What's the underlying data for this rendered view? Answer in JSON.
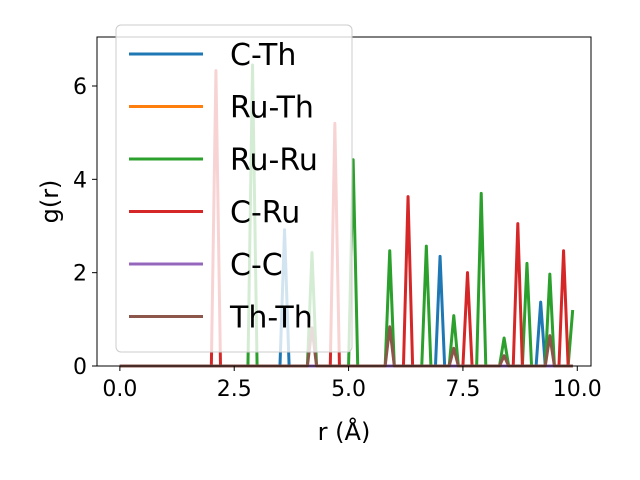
{
  "chart_data": {
    "type": "line",
    "title": "",
    "xlabel": "r (Å)",
    "ylabel": "g(r)",
    "xlim": [
      -0.5,
      10.3
    ],
    "ylim": [
      0,
      7.05
    ],
    "xticks": [
      0.0,
      2.5,
      5.0,
      7.5,
      10.0
    ],
    "xtick_labels": [
      "0.0",
      "2.5",
      "5.0",
      "7.5",
      "10.0"
    ],
    "yticks": [
      0,
      2,
      4,
      6
    ],
    "ytick_labels": [
      "0",
      "2",
      "4",
      "6"
    ],
    "grid": false,
    "legend_position": "upper-left",
    "series": [
      {
        "name": "C-Th",
        "color": "#1f77b4",
        "points": [
          [
            0,
            0
          ],
          [
            3.5,
            0
          ],
          [
            3.6,
            2.92
          ],
          [
            3.7,
            0
          ],
          [
            6.9,
            0
          ],
          [
            7.0,
            2.35
          ],
          [
            7.1,
            0
          ],
          [
            9.1,
            0
          ],
          [
            9.2,
            1.37
          ],
          [
            9.3,
            0
          ],
          [
            9.9,
            0
          ]
        ]
      },
      {
        "name": "Ru-Th",
        "color": "#ff7f0e",
        "points": [
          [
            0,
            0
          ],
          [
            9.9,
            0
          ]
        ]
      },
      {
        "name": "Ru-Ru",
        "color": "#2ca02c",
        "points": [
          [
            0,
            0
          ],
          [
            2.8,
            0
          ],
          [
            2.9,
            6.45
          ],
          [
            3.0,
            0
          ],
          [
            4.1,
            0
          ],
          [
            4.2,
            2.43
          ],
          [
            4.3,
            0
          ],
          [
            5.0,
            0
          ],
          [
            5.1,
            4.42
          ],
          [
            5.2,
            0
          ],
          [
            5.8,
            0
          ],
          [
            5.9,
            2.47
          ],
          [
            6.0,
            0
          ],
          [
            6.6,
            0
          ],
          [
            6.7,
            2.57
          ],
          [
            6.8,
            0
          ],
          [
            7.2,
            0
          ],
          [
            7.3,
            1.08
          ],
          [
            7.4,
            0
          ],
          [
            7.8,
            0
          ],
          [
            7.9,
            3.7
          ],
          [
            8.0,
            0
          ],
          [
            8.3,
            0
          ],
          [
            8.4,
            0.6
          ],
          [
            8.5,
            0
          ],
          [
            8.8,
            0
          ],
          [
            8.9,
            2.2
          ],
          [
            9.0,
            0
          ],
          [
            9.3,
            0
          ],
          [
            9.4,
            1.97
          ],
          [
            9.5,
            0
          ],
          [
            9.8,
            0
          ],
          [
            9.9,
            1.2
          ]
        ]
      },
      {
        "name": "C-Ru",
        "color": "#d62728",
        "points": [
          [
            0,
            0
          ],
          [
            2.0,
            0
          ],
          [
            2.1,
            6.33
          ],
          [
            2.2,
            0
          ],
          [
            4.6,
            0
          ],
          [
            4.7,
            5.2
          ],
          [
            4.8,
            0
          ],
          [
            6.2,
            0
          ],
          [
            6.3,
            3.63
          ],
          [
            6.4,
            0
          ],
          [
            7.5,
            0
          ],
          [
            7.6,
            2.0
          ],
          [
            7.7,
            0
          ],
          [
            8.6,
            0
          ],
          [
            8.7,
            3.05
          ],
          [
            8.8,
            0
          ],
          [
            9.6,
            0
          ],
          [
            9.7,
            2.47
          ],
          [
            9.8,
            0
          ],
          [
            9.9,
            0
          ]
        ]
      },
      {
        "name": "C-C",
        "color": "#9467bd",
        "points": [
          [
            0,
            0
          ],
          [
            9.9,
            0
          ]
        ]
      },
      {
        "name": "Th-Th",
        "color": "#8c564b",
        "points": [
          [
            0,
            0
          ],
          [
            4.1,
            0
          ],
          [
            4.2,
            0.82
          ],
          [
            4.3,
            0
          ],
          [
            5.8,
            0
          ],
          [
            5.9,
            0.84
          ],
          [
            6.0,
            0
          ],
          [
            7.2,
            0
          ],
          [
            7.3,
            0.38
          ],
          [
            7.4,
            0
          ],
          [
            8.3,
            0
          ],
          [
            8.4,
            0.22
          ],
          [
            8.5,
            0
          ],
          [
            9.3,
            0
          ],
          [
            9.4,
            0.65
          ],
          [
            9.5,
            0
          ],
          [
            9.9,
            0
          ]
        ]
      }
    ]
  }
}
